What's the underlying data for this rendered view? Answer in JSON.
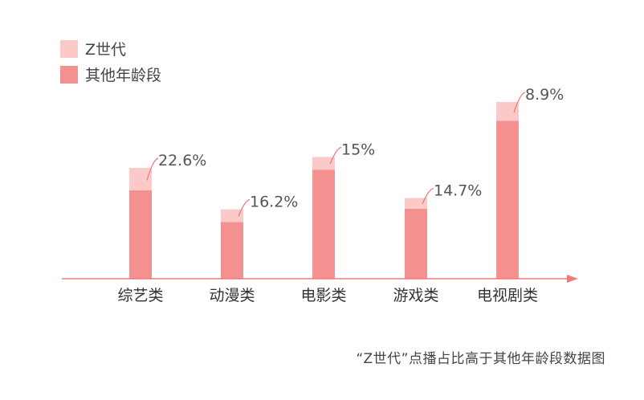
{
  "chart_data": {
    "type": "bar",
    "stacked": true,
    "categories": [
      "综艺类",
      "动漫类",
      "电影类",
      "游戏类",
      "电视剧类"
    ],
    "series": [
      {
        "name": "其他年龄段",
        "color": "#f59090",
        "values": [
          22.0,
          14.1,
          27.1,
          17.4,
          39.3
        ]
      },
      {
        "name": "Z世代",
        "color": "#fcc9c9",
        "values": [
          5.6,
          3.2,
          3.2,
          2.7,
          4.7
        ]
      }
    ],
    "labels": [
      "22.6%",
      "16.2%",
      "15%",
      "14.7%",
      "8.9%"
    ],
    "legend_position": "top-left",
    "grid": false,
    "ylim": [
      0,
      48
    ],
    "axis_color": "#f07b7b",
    "connector_color": "#e67878",
    "caption": "“Z世代”点播占比高于其他年龄段数据图"
  }
}
